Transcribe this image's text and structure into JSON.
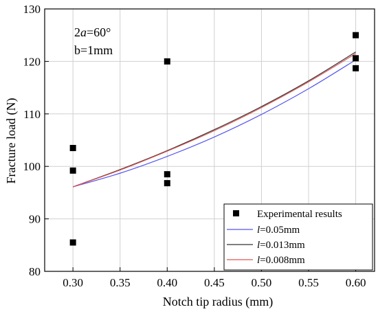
{
  "chart_data": {
    "type": "scatter",
    "xlabel": "Notch tip radius (mm)",
    "ylabel": "Fracture load (N)",
    "xlim": [
      0.27,
      0.62
    ],
    "ylim": [
      80,
      130
    ],
    "xticks": [
      "0.30",
      "0.35",
      "0.40",
      "0.45",
      "0.50",
      "0.55",
      "0.60"
    ],
    "yticks": [
      "80",
      "90",
      "100",
      "110",
      "120",
      "130"
    ],
    "grid": true,
    "legend_position": "bottom-right",
    "annotation": {
      "italic_part": "a",
      "prefix": "2",
      "suffix": "=60°",
      "line2": "b=1mm"
    },
    "series": [
      {
        "name": "Experimental results",
        "type": "scatter",
        "marker": "square",
        "color": "#000000",
        "x": [
          0.3,
          0.3,
          0.3,
          0.4,
          0.4,
          0.4,
          0.6,
          0.6,
          0.6
        ],
        "y": [
          103.5,
          99.2,
          85.5,
          120.0,
          98.5,
          96.8,
          125.0,
          120.6,
          118.7
        ]
      },
      {
        "name": "l=0.05mm",
        "legend_italic": "l",
        "legend_rest": "=0.05mm",
        "type": "line",
        "color": "#5555ee",
        "x": [
          0.3,
          0.35,
          0.4,
          0.45,
          0.5,
          0.55,
          0.6
        ],
        "y": [
          96.1,
          98.7,
          101.9,
          105.6,
          109.9,
          114.8,
          120.3
        ]
      },
      {
        "name": "l=0.013mm",
        "legend_italic": "l",
        "legend_rest": "=0.013mm",
        "type": "line",
        "color": "#333333",
        "x": [
          0.3,
          0.35,
          0.4,
          0.45,
          0.5,
          0.55,
          0.6
        ],
        "y": [
          96.1,
          99.4,
          103.0,
          107.0,
          111.4,
          116.3,
          121.8
        ]
      },
      {
        "name": "l=0.008mm",
        "legend_italic": "l",
        "legend_rest": "=0.008mm",
        "type": "line",
        "color": "#e05555",
        "x": [
          0.3,
          0.35,
          0.4,
          0.45,
          0.5,
          0.55,
          0.6
        ],
        "y": [
          96.1,
          99.3,
          102.9,
          106.8,
          111.2,
          116.1,
          121.5
        ]
      }
    ]
  }
}
